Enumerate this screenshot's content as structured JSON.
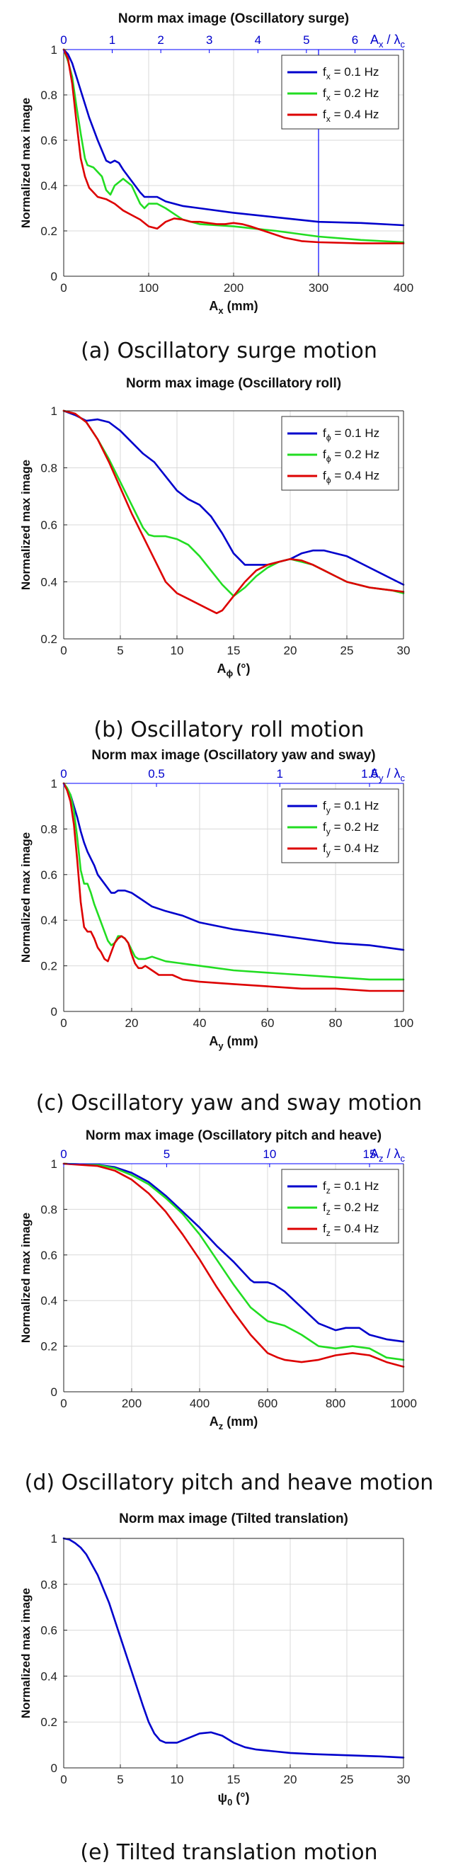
{
  "chart_data": [
    {
      "type": "line",
      "title": "Norm max image (Oscillatory surge)",
      "xlabel_main": "A",
      "xlabel_sub": "x",
      "xlabel_tail": " (mm)",
      "ylabel": "Normalized max image",
      "xlim": [
        0,
        400
      ],
      "ylim": [
        0,
        1
      ],
      "xticks": [
        0,
        100,
        200,
        300,
        400
      ],
      "yticks": [
        0,
        0.2,
        0.4,
        0.6,
        0.8,
        1
      ],
      "top_axis": {
        "ticks": [
          0,
          1,
          2,
          3,
          4,
          5,
          6
        ],
        "positions": [
          0,
          57.1,
          114.3,
          171.4,
          228.6,
          285.7,
          342.9
        ],
        "label_main": "A",
        "label_sub": "x",
        "label_tail": " / λ",
        "label_tail_sub": "c"
      },
      "vline_x": 300,
      "caption": "(a) Oscillatory surge motion",
      "series": [
        {
          "name_main": "f",
          "name_sub": "x",
          "name_tail": " = 0.1 Hz",
          "color": "#0000cc",
          "x": [
            0,
            5,
            10,
            20,
            30,
            40,
            50,
            55,
            60,
            65,
            70,
            80,
            90,
            95,
            100,
            110,
            120,
            140,
            160,
            200,
            250,
            300,
            350,
            400
          ],
          "y": [
            1,
            0.98,
            0.94,
            0.82,
            0.7,
            0.6,
            0.51,
            0.5,
            0.51,
            0.5,
            0.47,
            0.42,
            0.37,
            0.35,
            0.35,
            0.35,
            0.33,
            0.31,
            0.3,
            0.28,
            0.26,
            0.24,
            0.235,
            0.225
          ]
        },
        {
          "name_main": "f",
          "name_sub": "x",
          "name_tail": " = 0.2 Hz",
          "color": "#22dd22",
          "x": [
            0,
            5,
            10,
            15,
            20,
            25,
            28,
            35,
            45,
            50,
            55,
            60,
            70,
            80,
            90,
            95,
            100,
            110,
            120,
            140,
            160,
            200,
            250,
            300,
            350,
            400
          ],
          "y": [
            1,
            0.95,
            0.88,
            0.75,
            0.63,
            0.52,
            0.49,
            0.48,
            0.44,
            0.38,
            0.36,
            0.4,
            0.43,
            0.4,
            0.32,
            0.3,
            0.32,
            0.32,
            0.3,
            0.25,
            0.23,
            0.22,
            0.2,
            0.175,
            0.16,
            0.15
          ]
        },
        {
          "name_main": "f",
          "name_sub": "x",
          "name_tail": " = 0.4 Hz",
          "color": "#dd0000",
          "x": [
            0,
            5,
            10,
            15,
            20,
            25,
            30,
            40,
            50,
            60,
            70,
            80,
            90,
            100,
            110,
            120,
            130,
            140,
            150,
            160,
            170,
            180,
            190,
            200,
            210,
            220,
            240,
            260,
            280,
            300,
            350,
            400
          ],
          "y": [
            1,
            0.96,
            0.85,
            0.68,
            0.52,
            0.44,
            0.39,
            0.35,
            0.34,
            0.32,
            0.29,
            0.27,
            0.25,
            0.22,
            0.21,
            0.24,
            0.255,
            0.25,
            0.24,
            0.24,
            0.235,
            0.23,
            0.23,
            0.235,
            0.23,
            0.22,
            0.195,
            0.17,
            0.155,
            0.15,
            0.145,
            0.145
          ]
        }
      ]
    },
    {
      "type": "line",
      "title": "Norm max image (Oscillatory roll)",
      "xlabel_main": "A",
      "xlabel_sub": "ϕ",
      "xlabel_tail": " (°)",
      "ylabel": "Normalized max image",
      "xlim": [
        0,
        30
      ],
      "ylim": [
        0.2,
        1
      ],
      "xticks": [
        0,
        5,
        10,
        15,
        20,
        25,
        30
      ],
      "yticks": [
        0.2,
        0.4,
        0.6,
        0.8,
        1
      ],
      "caption": "(b) Oscillatory roll motion",
      "series": [
        {
          "name_main": "f",
          "name_sub": "ϕ",
          "name_tail": " = 0.1 Hz",
          "color": "#0000cc",
          "x": [
            0,
            1,
            2,
            3,
            4,
            5,
            6,
            7,
            8,
            9,
            10,
            11,
            12,
            13,
            14,
            15,
            16,
            17,
            18,
            19,
            20,
            21,
            22,
            23,
            24,
            25,
            26,
            27,
            28,
            29,
            30
          ],
          "y": [
            1,
            0.985,
            0.965,
            0.97,
            0.96,
            0.93,
            0.89,
            0.85,
            0.82,
            0.77,
            0.72,
            0.69,
            0.67,
            0.63,
            0.57,
            0.5,
            0.46,
            0.46,
            0.46,
            0.47,
            0.48,
            0.5,
            0.51,
            0.51,
            0.5,
            0.49,
            0.47,
            0.45,
            0.43,
            0.41,
            0.39
          ]
        },
        {
          "name_main": "f",
          "name_sub": "ϕ",
          "name_tail": " = 0.2 Hz",
          "color": "#22dd22",
          "x": [
            0,
            1,
            2,
            3,
            4,
            5,
            6,
            7,
            7.5,
            8,
            9,
            10,
            11,
            12,
            13,
            14,
            15,
            16,
            17,
            18,
            19,
            20,
            21,
            22,
            23,
            24,
            25,
            26,
            27,
            28,
            29,
            30
          ],
          "y": [
            1,
            0.99,
            0.96,
            0.9,
            0.83,
            0.75,
            0.67,
            0.59,
            0.565,
            0.56,
            0.56,
            0.55,
            0.53,
            0.49,
            0.44,
            0.39,
            0.35,
            0.38,
            0.42,
            0.45,
            0.47,
            0.48,
            0.47,
            0.46,
            0.44,
            0.42,
            0.4,
            0.39,
            0.38,
            0.375,
            0.37,
            0.36
          ]
        },
        {
          "name_main": "f",
          "name_sub": "ϕ",
          "name_tail": " = 0.4 Hz",
          "color": "#dd0000",
          "x": [
            0,
            1,
            2,
            3,
            4,
            5,
            6,
            7,
            8,
            9,
            10,
            11,
            12,
            13,
            13.5,
            14,
            15,
            16,
            17,
            18,
            19,
            20,
            21,
            22,
            23,
            24,
            25,
            26,
            27,
            28,
            29,
            30
          ],
          "y": [
            1,
            0.99,
            0.96,
            0.9,
            0.82,
            0.73,
            0.64,
            0.56,
            0.48,
            0.4,
            0.36,
            0.34,
            0.32,
            0.3,
            0.29,
            0.3,
            0.35,
            0.4,
            0.44,
            0.46,
            0.47,
            0.48,
            0.475,
            0.46,
            0.44,
            0.42,
            0.4,
            0.39,
            0.38,
            0.375,
            0.37,
            0.365
          ]
        }
      ]
    },
    {
      "type": "line",
      "title": "Norm max image (Oscillatory yaw and sway)",
      "xlabel_main": "A",
      "xlabel_sub": "y",
      "xlabel_tail": " (mm)",
      "ylabel": "Normalized max image",
      "xlim": [
        0,
        100
      ],
      "ylim": [
        0,
        1
      ],
      "xticks": [
        0,
        20,
        40,
        60,
        80,
        100
      ],
      "yticks": [
        0,
        0.2,
        0.4,
        0.6,
        0.8,
        1
      ],
      "top_axis": {
        "ticks": [
          0,
          0.5,
          1,
          1.5
        ],
        "positions": [
          0,
          27.3,
          63.6,
          90
        ],
        "label_main": "A",
        "label_sub": "y",
        "label_tail": " / λ",
        "label_tail_sub": "c"
      },
      "caption": "(c) Oscillatory yaw and sway motion",
      "series": [
        {
          "name_main": "f",
          "name_sub": "y",
          "name_tail": " = 0.1 Hz",
          "color": "#0000cc",
          "x": [
            0,
            1,
            2,
            3,
            4,
            5,
            6,
            7,
            8,
            9,
            10,
            12,
            14,
            15,
            16,
            18,
            20,
            22,
            24,
            26,
            30,
            35,
            40,
            50,
            60,
            70,
            80,
            90,
            100
          ],
          "y": [
            1,
            0.97,
            0.95,
            0.9,
            0.85,
            0.79,
            0.74,
            0.7,
            0.67,
            0.64,
            0.6,
            0.56,
            0.52,
            0.52,
            0.53,
            0.53,
            0.52,
            0.5,
            0.48,
            0.46,
            0.44,
            0.42,
            0.39,
            0.36,
            0.34,
            0.32,
            0.3,
            0.29,
            0.27
          ]
        },
        {
          "name_main": "f",
          "name_sub": "y",
          "name_tail": " = 0.2 Hz",
          "color": "#22dd22",
          "x": [
            0,
            1,
            2,
            3,
            4,
            5,
            6,
            7,
            8,
            9,
            10,
            11,
            12,
            13,
            14,
            15,
            16,
            17,
            18,
            19,
            20,
            21,
            22,
            24,
            26,
            30,
            35,
            40,
            50,
            60,
            70,
            80,
            90,
            100
          ],
          "y": [
            1,
            0.98,
            0.95,
            0.88,
            0.76,
            0.62,
            0.56,
            0.56,
            0.52,
            0.47,
            0.43,
            0.39,
            0.35,
            0.31,
            0.29,
            0.3,
            0.33,
            0.33,
            0.32,
            0.3,
            0.27,
            0.24,
            0.23,
            0.23,
            0.24,
            0.22,
            0.21,
            0.2,
            0.18,
            0.17,
            0.16,
            0.15,
            0.14,
            0.14
          ]
        },
        {
          "name_main": "f",
          "name_sub": "y",
          "name_tail": " = 0.4 Hz",
          "color": "#dd0000",
          "x": [
            0,
            1,
            2,
            3,
            4,
            5,
            6,
            7,
            8,
            9,
            10,
            11,
            12,
            13,
            14,
            15,
            16,
            17,
            18,
            19,
            20,
            21,
            22,
            23,
            24,
            26,
            28,
            30,
            32,
            35,
            40,
            50,
            60,
            70,
            80,
            90,
            100
          ],
          "y": [
            1,
            0.97,
            0.92,
            0.82,
            0.66,
            0.48,
            0.37,
            0.35,
            0.35,
            0.32,
            0.28,
            0.26,
            0.23,
            0.22,
            0.26,
            0.3,
            0.32,
            0.33,
            0.32,
            0.3,
            0.25,
            0.21,
            0.19,
            0.19,
            0.2,
            0.18,
            0.16,
            0.16,
            0.16,
            0.14,
            0.13,
            0.12,
            0.11,
            0.1,
            0.1,
            0.09,
            0.09
          ]
        }
      ]
    },
    {
      "type": "line",
      "title": "Norm max image (Oscillatory pitch and heave)",
      "xlabel_main": "A",
      "xlabel_sub": "z",
      "xlabel_tail": " (mm)",
      "ylabel": "Normalized max image",
      "xlim": [
        0,
        1000
      ],
      "ylim": [
        0,
        1
      ],
      "xticks": [
        0,
        200,
        400,
        600,
        800,
        1000
      ],
      "yticks": [
        0,
        0.2,
        0.4,
        0.6,
        0.8,
        1
      ],
      "top_axis": {
        "ticks": [
          0,
          5,
          10,
          15
        ],
        "positions": [
          0,
          303,
          606,
          900
        ],
        "label_main": "A",
        "label_sub": "z",
        "label_tail": " / λ",
        "label_tail_sub": "c"
      },
      "caption": "(d) Oscillatory pitch and heave motion",
      "series": [
        {
          "name_main": "f",
          "name_sub": "z",
          "name_tail": " = 0.1 Hz",
          "color": "#0000cc",
          "x": [
            0,
            100,
            150,
            200,
            250,
            300,
            350,
            400,
            450,
            500,
            550,
            560,
            580,
            600,
            620,
            650,
            700,
            750,
            800,
            830,
            850,
            870,
            900,
            950,
            1000
          ],
          "y": [
            1,
            0.995,
            0.985,
            0.96,
            0.92,
            0.86,
            0.79,
            0.72,
            0.64,
            0.57,
            0.49,
            0.48,
            0.48,
            0.48,
            0.47,
            0.44,
            0.37,
            0.3,
            0.27,
            0.28,
            0.28,
            0.28,
            0.25,
            0.23,
            0.22
          ]
        },
        {
          "name_main": "f",
          "name_sub": "z",
          "name_tail": " = 0.2 Hz",
          "color": "#22dd22",
          "x": [
            0,
            100,
            150,
            200,
            250,
            300,
            350,
            400,
            450,
            500,
            550,
            600,
            650,
            700,
            750,
            800,
            850,
            900,
            950,
            1000
          ],
          "y": [
            1,
            0.995,
            0.98,
            0.95,
            0.91,
            0.85,
            0.78,
            0.69,
            0.58,
            0.47,
            0.37,
            0.31,
            0.29,
            0.25,
            0.2,
            0.19,
            0.2,
            0.19,
            0.15,
            0.14
          ]
        },
        {
          "name_main": "f",
          "name_sub": "z",
          "name_tail": " = 0.4 Hz",
          "color": "#dd0000",
          "x": [
            0,
            100,
            150,
            200,
            250,
            300,
            350,
            400,
            450,
            500,
            550,
            600,
            630,
            650,
            700,
            750,
            800,
            850,
            900,
            950,
            1000
          ],
          "y": [
            1,
            0.99,
            0.97,
            0.93,
            0.87,
            0.79,
            0.69,
            0.58,
            0.46,
            0.35,
            0.25,
            0.17,
            0.15,
            0.14,
            0.13,
            0.14,
            0.16,
            0.17,
            0.16,
            0.13,
            0.11
          ]
        }
      ]
    },
    {
      "type": "line",
      "title": "Norm max image (Tilted translation)",
      "xlabel_main": "ψ",
      "xlabel_sub": "0",
      "xlabel_tail": " (°)",
      "ylabel": "Normalized max image",
      "xlim": [
        0,
        30
      ],
      "ylim": [
        0,
        1
      ],
      "xticks": [
        0,
        5,
        10,
        15,
        20,
        25,
        30
      ],
      "yticks": [
        0,
        0.2,
        0.4,
        0.6,
        0.8,
        1
      ],
      "caption": "(e) Tilted translation motion",
      "series": [
        {
          "name_main": "",
          "name_sub": "",
          "name_tail": "",
          "color": "#0000cc",
          "x": [
            0,
            0.5,
            1,
            1.5,
            2,
            3,
            4,
            5,
            6,
            7,
            7.5,
            8,
            8.5,
            9,
            10,
            11,
            12,
            13,
            14,
            15,
            16,
            17,
            18,
            20,
            22,
            25,
            28,
            30
          ],
          "y": [
            1,
            0.995,
            0.98,
            0.96,
            0.93,
            0.84,
            0.72,
            0.57,
            0.42,
            0.27,
            0.2,
            0.15,
            0.12,
            0.11,
            0.11,
            0.13,
            0.15,
            0.155,
            0.14,
            0.11,
            0.09,
            0.08,
            0.075,
            0.065,
            0.06,
            0.055,
            0.05,
            0.045
          ]
        }
      ]
    }
  ]
}
